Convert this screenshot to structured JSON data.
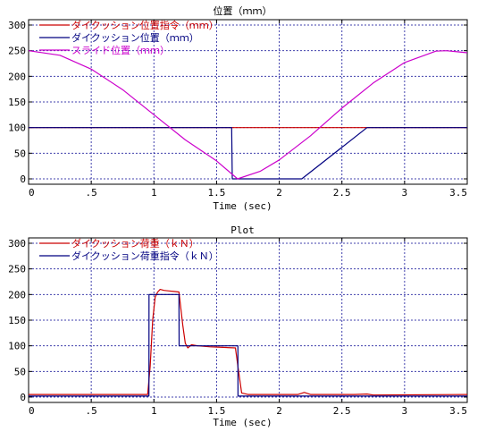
{
  "chart_data": [
    {
      "type": "line",
      "title": "位置（ｍｍ）",
      "xlabel": "Time (sec)",
      "ylabel": "",
      "xlim": [
        0,
        3.5
      ],
      "ylim": [
        0,
        300
      ],
      "x_ticks": [
        0,
        0.5,
        1,
        1.5,
        2,
        2.5,
        3,
        3.5
      ],
      "x_tick_labels": [
        "0",
        ".5",
        "1",
        "1.5",
        "2",
        "2.5",
        "3",
        "3.5"
      ],
      "y_ticks": [
        0,
        50,
        100,
        150,
        200,
        250,
        300
      ],
      "y_tick_labels": [
        "0",
        "50",
        "100",
        "150",
        "200",
        "250",
        "300"
      ],
      "grid": true,
      "legend_position": "top-left",
      "series": [
        {
          "name": "ダイクッション位置指令（ｍｍ）",
          "color": "#cc0000",
          "x": [
            0,
            2.18,
            2.7,
            3.5
          ],
          "y": [
            100,
            100,
            100,
            100
          ]
        },
        {
          "name": "ダイクッション位置（ｍｍ）",
          "color": "#000080",
          "x": [
            0,
            1.62,
            1.625,
            2.18,
            2.7,
            3.5
          ],
          "y": [
            100,
            100,
            0,
            0,
            100,
            100
          ]
        },
        {
          "name": "スライド位置（ｍｍ）",
          "color": "#cc00cc",
          "x": [
            0,
            0.25,
            0.5,
            0.75,
            1.0,
            1.25,
            1.5,
            1.667,
            1.85,
            2.0,
            2.25,
            2.5,
            2.75,
            3.0,
            3.25,
            3.333,
            3.5
          ],
          "y": [
            250,
            241,
            214,
            174,
            125,
            76,
            35,
            0,
            15,
            37,
            84,
            138,
            187,
            227,
            249,
            250,
            246
          ]
        }
      ]
    },
    {
      "type": "line",
      "title": "Plot",
      "xlabel": "Time (sec)",
      "ylabel": "",
      "xlim": [
        0,
        3.5
      ],
      "ylim": [
        0,
        300
      ],
      "x_ticks": [
        0,
        0.5,
        1,
        1.5,
        2,
        2.5,
        3,
        3.5
      ],
      "x_tick_labels": [
        "0",
        ".5",
        "1",
        "1.5",
        "2",
        "2.5",
        "3",
        "3.5"
      ],
      "y_ticks": [
        0,
        50,
        100,
        150,
        200,
        250,
        300
      ],
      "y_tick_labels": [
        "0",
        "50",
        "100",
        "150",
        "200",
        "250",
        "300"
      ],
      "grid": true,
      "legend_position": "top-left",
      "series": [
        {
          "name": "ダイクッション荷重（ｋＮ）",
          "color": "#cc0000",
          "x": [
            0,
            0.95,
            0.97,
            0.99,
            1.01,
            1.03,
            1.05,
            1.08,
            1.12,
            1.16,
            1.2,
            1.23,
            1.25,
            1.27,
            1.3,
            1.35,
            1.45,
            1.55,
            1.65,
            1.67,
            1.7,
            1.75,
            2.15,
            2.2,
            2.25,
            2.6,
            2.7,
            2.75,
            3.5
          ],
          "y": [
            5,
            5,
            60,
            150,
            195,
            205,
            210,
            208,
            207,
            206,
            205,
            140,
            105,
            96,
            102,
            100,
            98,
            97,
            96,
            60,
            8,
            5,
            5,
            9,
            5,
            5,
            6,
            4,
            5
          ]
        },
        {
          "name": "ダイクッション荷重指令（ｋＮ）",
          "color": "#000080",
          "x": [
            0,
            0.96,
            0.961,
            1.2,
            1.201,
            1.67,
            1.671,
            3.5
          ],
          "y": [
            2,
            2,
            200,
            200,
            100,
            100,
            2,
            2
          ]
        }
      ]
    }
  ]
}
